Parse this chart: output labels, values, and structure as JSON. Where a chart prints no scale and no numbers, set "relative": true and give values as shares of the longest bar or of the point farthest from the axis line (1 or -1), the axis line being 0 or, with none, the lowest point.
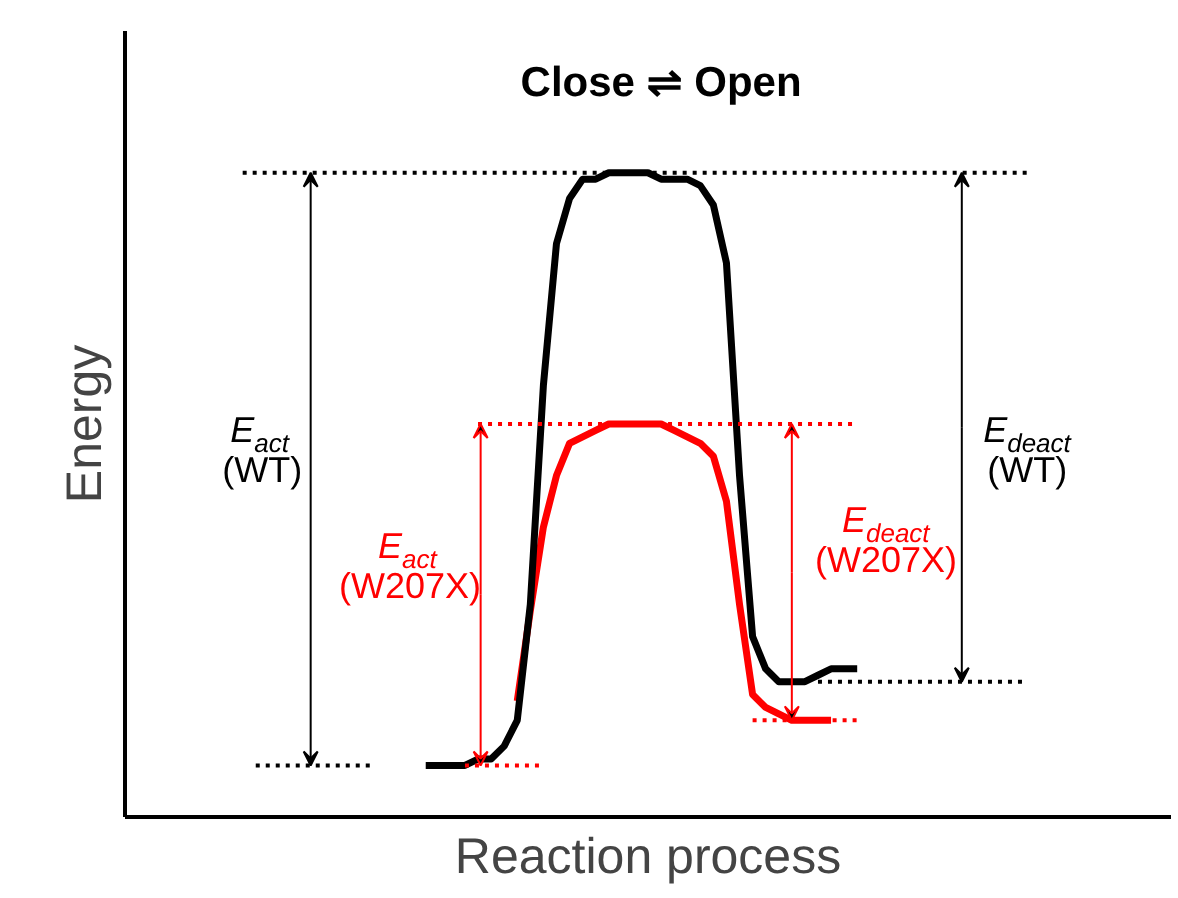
{
  "chart_data": {
    "type": "line",
    "relative": true,
    "title": "Close ⇌ Open",
    "xlabel": "Reaction process",
    "ylabel": "Energy",
    "annotations": [
      "E$_{act}$ (WT)",
      "E$_{deact}$ (WT)",
      "E$_{act}$ (W207X)",
      "E$_{deact}$ (W207X)"
    ],
    "categories": [
      null,
      null,
      null,
      null,
      null,
      null,
      null,
      null,
      null,
      null,
      null,
      null,
      null,
      null,
      null,
      null,
      null,
      null,
      null,
      null,
      null,
      null,
      null,
      null,
      null,
      null,
      null,
      null,
      null,
      null,
      null,
      null,
      null,
      null,
      null,
      null,
      null,
      null,
      null,
      null,
      null,
      null,
      null,
      null,
      null,
      null,
      null,
      null,
      null,
      null,
      null,
      null,
      null,
      null,
      null,
      null,
      null,
      null,
      null,
      null,
      null,
      null,
      null,
      null,
      null,
      null,
      null,
      null,
      null,
      null,
      null,
      null,
      null,
      null,
      null,
      null,
      null,
      null,
      null,
      null,
      null
    ],
    "series": [
      {
        "line_style": "solid",
        "color": "#ff0000",
        "values": [
          null,
          null,
          null,
          null,
          null,
          null,
          null,
          null,
          null,
          null,
          null,
          null,
          null,
          null,
          null,
          null,
          null,
          null,
          null,
          null,
          null,
          null,
          null,
          null,
          null,
          null,
          null,
          null,
          null,
          null,
          0.18,
          0.32,
          0.45,
          0.53,
          0.58,
          0.59,
          0.6,
          0.61,
          0.61,
          0.61,
          0.61,
          0.61,
          0.6,
          0.59,
          0.58,
          0.56,
          0.49,
          0.33,
          0.19,
          0.17,
          0.16,
          0.15,
          0.15,
          0.15,
          0.15,
          null,
          null,
          null,
          null,
          null,
          null,
          null,
          null,
          null,
          null,
          null,
          null,
          null,
          null,
          null,
          null,
          null,
          null,
          null,
          null,
          null,
          null,
          null,
          null,
          null,
          null
        ]
      },
      {
        "line_style": "solid",
        "color": "#000000",
        "values": [
          null,
          null,
          null,
          null,
          null,
          null,
          null,
          null,
          null,
          null,
          null,
          null,
          null,
          null,
          null,
          null,
          null,
          null,
          null,
          null,
          null,
          null,
          null,
          0.08,
          0.08,
          0.08,
          0.08,
          0.09,
          0.09,
          0.11,
          0.15,
          0.33,
          0.67,
          0.89,
          0.96,
          0.99,
          0.99,
          1,
          1,
          1,
          1,
          0.99,
          0.99,
          0.99,
          0.98,
          0.95,
          0.86,
          0.53,
          0.28,
          0.23,
          0.21,
          0.21,
          0.21,
          0.22,
          0.23,
          0.23,
          0.23,
          null,
          null,
          null,
          null,
          null,
          null,
          null,
          null,
          null,
          null,
          null,
          null,
          null,
          null,
          null,
          null,
          null,
          null,
          null,
          null,
          null,
          null,
          null,
          null
        ]
      },
      {
        "type": "line",
        "line_style": "dotted",
        "color": "#000000",
        "values": [
          null,
          null,
          null,
          null,
          null,
          null,
          null,
          null,
          null,
          1,
          1,
          1,
          1,
          1,
          1,
          1,
          1,
          1,
          1,
          1,
          1,
          1,
          1,
          1,
          1,
          1,
          1,
          1,
          1,
          1,
          1,
          1,
          1,
          1,
          1,
          1,
          1,
          1,
          1,
          1,
          1,
          1,
          1,
          1,
          1,
          1,
          1,
          1,
          1,
          1,
          1,
          1,
          1,
          1,
          1,
          1,
          1,
          1,
          1,
          1,
          1,
          1,
          1,
          1,
          1,
          1,
          1,
          1,
          1,
          1,
          null,
          null,
          null,
          null,
          null,
          null,
          null,
          null,
          null,
          null,
          null
        ]
      },
      {
        "type": "line",
        "line_style": "dotted",
        "color": "#000000",
        "values": [
          null,
          null,
          null,
          null,
          null,
          null,
          null,
          null,
          null,
          null,
          0.08,
          0.08,
          0.08,
          0.08,
          0.08,
          0.08,
          0.08,
          0.08,
          0.08,
          0.08,
          null,
          null,
          null,
          null,
          null,
          null,
          null,
          null,
          null,
          null,
          null,
          null,
          null,
          null,
          null,
          null,
          null,
          null,
          null,
          null,
          null,
          null,
          null,
          null,
          null,
          null,
          null,
          null,
          null,
          null,
          null,
          null,
          null,
          null,
          null,
          null,
          null,
          null,
          null,
          null,
          null,
          null,
          null,
          null,
          null,
          null,
          null,
          null,
          null,
          null,
          null,
          null,
          null,
          null,
          null,
          null,
          null,
          null,
          null,
          null,
          null
        ]
      },
      {
        "type": "line",
        "line_style": "dotted",
        "color": "#000000",
        "values": [
          null,
          null,
          null,
          null,
          null,
          null,
          null,
          null,
          null,
          null,
          null,
          null,
          null,
          null,
          null,
          null,
          null,
          null,
          null,
          null,
          null,
          null,
          null,
          null,
          null,
          null,
          null,
          null,
          null,
          null,
          null,
          null,
          null,
          null,
          null,
          null,
          null,
          null,
          null,
          null,
          null,
          null,
          null,
          null,
          null,
          null,
          null,
          null,
          null,
          null,
          null,
          null,
          null,
          0.21,
          0.21,
          0.21,
          0.21,
          0.21,
          0.21,
          0.21,
          0.21,
          0.21,
          0.21,
          0.21,
          0.21,
          0.21,
          0.21,
          0.21,
          0.21,
          0.21,
          null,
          null,
          null,
          null,
          null,
          null,
          null,
          null,
          null,
          null,
          null
        ]
      },
      {
        "type": "line",
        "line_style": "dotted",
        "color": "#ff0000",
        "values": [
          null,
          null,
          null,
          null,
          null,
          null,
          null,
          null,
          null,
          null,
          null,
          null,
          null,
          null,
          null,
          null,
          null,
          null,
          null,
          null,
          null,
          null,
          null,
          null,
          null,
          null,
          null,
          0.61,
          0.61,
          0.61,
          0.61,
          0.61,
          0.61,
          0.61,
          0.61,
          0.61,
          0.61,
          0.61,
          0.61,
          0.61,
          0.61,
          0.61,
          0.61,
          0.61,
          0.61,
          0.61,
          0.61,
          0.61,
          0.61,
          0.61,
          0.61,
          0.61,
          0.61,
          0.61,
          0.61,
          0.61,
          0.61,
          null,
          null,
          null,
          null,
          null,
          null,
          null,
          null,
          null,
          null,
          null,
          null,
          null,
          null,
          null,
          null,
          null,
          null,
          null,
          null,
          null,
          null,
          null,
          null
        ]
      },
      {
        "type": "line",
        "line_style": "dotted",
        "color": "#ff0000",
        "values": [
          null,
          null,
          null,
          null,
          null,
          null,
          null,
          null,
          null,
          null,
          null,
          null,
          null,
          null,
          null,
          null,
          null,
          null,
          null,
          null,
          null,
          null,
          null,
          null,
          null,
          null,
          0.08,
          0.08,
          0.08,
          0.08,
          0.08,
          0.08,
          0.08,
          null,
          null,
          null,
          null,
          null,
          null,
          null,
          null,
          null,
          null,
          null,
          null,
          null,
          null,
          null,
          null,
          null,
          null,
          null,
          null,
          null,
          null,
          null,
          null,
          null,
          null,
          null,
          null,
          null,
          null,
          null,
          null,
          null,
          null,
          null,
          null,
          null,
          null,
          null,
          null,
          null,
          null,
          null,
          null,
          null,
          null,
          null,
          null
        ]
      },
      {
        "type": "line",
        "line_style": "dotted",
        "color": "#ff0000",
        "values": [
          null,
          null,
          null,
          null,
          null,
          null,
          null,
          null,
          null,
          null,
          null,
          null,
          null,
          null,
          null,
          null,
          null,
          null,
          null,
          null,
          null,
          null,
          null,
          null,
          null,
          null,
          null,
          null,
          null,
          null,
          null,
          null,
          null,
          null,
          null,
          null,
          null,
          null,
          null,
          null,
          null,
          null,
          null,
          null,
          null,
          null,
          null,
          null,
          0.15,
          0.15,
          0.15,
          0.15,
          0.15,
          0.15,
          0.15,
          0.15,
          0.15,
          null,
          null,
          null,
          null,
          null,
          null,
          null,
          null,
          null,
          null,
          null,
          null,
          null,
          null,
          null,
          null,
          null,
          null,
          null,
          null,
          null,
          null,
          null,
          null
        ]
      }
    ]
  }
}
